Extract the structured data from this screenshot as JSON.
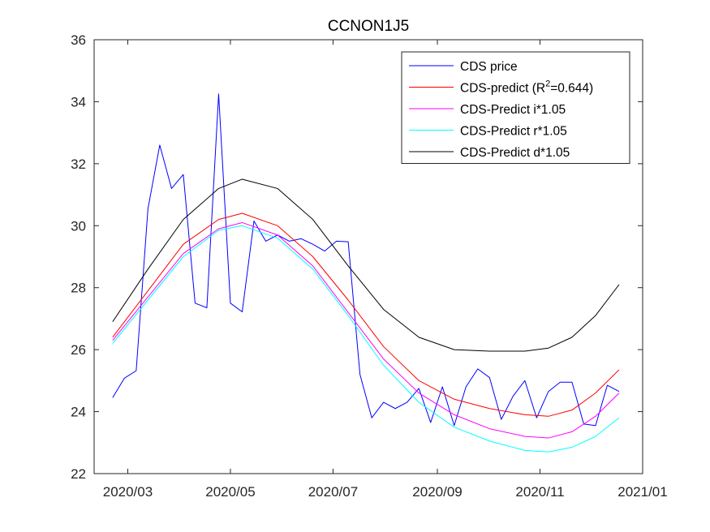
{
  "chart_data": {
    "type": "line",
    "title": "CCNON1J5",
    "xlabel": "",
    "ylabel": "",
    "xlim": [
      "2020-02-10",
      "2021-01-01"
    ],
    "ylim": [
      22,
      36
    ],
    "x_ticks": [
      "2020-03-01",
      "2020-05-01",
      "2020-07-01",
      "2020-09-01",
      "2020-11-01",
      "2021-01-01"
    ],
    "x_tick_labels": [
      "2020/03",
      "2020/05",
      "2020/07",
      "2020/09",
      "2020/11",
      "2021/01"
    ],
    "y_ticks": [
      22,
      24,
      26,
      28,
      30,
      32,
      34,
      36
    ],
    "y_tick_labels": [
      "22",
      "24",
      "26",
      "28",
      "30",
      "32",
      "34",
      "36"
    ],
    "grid": false,
    "legend_position": "top-right",
    "legend": [
      {
        "key": "cds",
        "label": "CDS price",
        "color": "#0000ff"
      },
      {
        "key": "pred",
        "label_pre": "CDS-predict (R",
        "label_sup": "2",
        "label_post": "=0.644)",
        "color": "#ff0000"
      },
      {
        "key": "i",
        "label": "CDS-Predict i*1.05",
        "color": "#ff00ff"
      },
      {
        "key": "r",
        "label": "CDS-Predict r*1.05",
        "color": "#00ffff"
      },
      {
        "key": "d",
        "label": "CDS-Predict d*1.05",
        "color": "#000000"
      }
    ],
    "series": [
      {
        "key": "cds",
        "name": "CDS price",
        "color": "#0000ff",
        "points": [
          [
            "2020-02-21",
            24.45
          ],
          [
            "2020-02-28",
            25.08
          ],
          [
            "2020-03-06",
            25.32
          ],
          [
            "2020-03-13",
            30.55
          ],
          [
            "2020-03-20",
            32.6
          ],
          [
            "2020-03-27",
            31.2
          ],
          [
            "2020-04-03",
            31.65
          ],
          [
            "2020-04-10",
            27.5
          ],
          [
            "2020-04-17",
            27.35
          ],
          [
            "2020-04-24",
            34.25
          ],
          [
            "2020-05-01",
            27.5
          ],
          [
            "2020-05-08",
            27.22
          ],
          [
            "2020-05-15",
            30.15
          ],
          [
            "2020-05-22",
            29.5
          ],
          [
            "2020-05-29",
            29.7
          ],
          [
            "2020-06-05",
            29.5
          ],
          [
            "2020-06-12",
            29.58
          ],
          [
            "2020-06-19",
            29.4
          ],
          [
            "2020-06-26",
            29.18
          ],
          [
            "2020-07-03",
            29.5
          ],
          [
            "2020-07-10",
            29.48
          ],
          [
            "2020-07-17",
            25.2
          ],
          [
            "2020-07-24",
            23.8
          ],
          [
            "2020-07-31",
            24.3
          ],
          [
            "2020-08-07",
            24.1
          ],
          [
            "2020-08-14",
            24.3
          ],
          [
            "2020-08-21",
            24.75
          ],
          [
            "2020-08-28",
            23.65
          ],
          [
            "2020-09-04",
            24.8
          ],
          [
            "2020-09-11",
            23.55
          ],
          [
            "2020-09-18",
            24.8
          ],
          [
            "2020-09-25",
            25.38
          ],
          [
            "2020-10-02",
            25.1
          ],
          [
            "2020-10-09",
            23.75
          ],
          [
            "2020-10-16",
            24.5
          ],
          [
            "2020-10-23",
            25.0
          ],
          [
            "2020-10-30",
            23.8
          ],
          [
            "2020-11-06",
            24.65
          ],
          [
            "2020-11-13",
            24.95
          ],
          [
            "2020-11-20",
            24.95
          ],
          [
            "2020-11-27",
            23.6
          ],
          [
            "2020-12-04",
            23.55
          ],
          [
            "2020-12-11",
            24.85
          ],
          [
            "2020-12-18",
            24.65
          ]
        ]
      },
      {
        "key": "pred",
        "name": "CDS-predict (R2=0.644)",
        "color": "#ff0000",
        "points": [
          [
            "2020-02-21",
            26.4
          ],
          [
            "2020-03-13",
            27.9
          ],
          [
            "2020-04-03",
            29.4
          ],
          [
            "2020-04-24",
            30.2
          ],
          [
            "2020-05-08",
            30.4
          ],
          [
            "2020-05-29",
            30.0
          ],
          [
            "2020-06-19",
            29.0
          ],
          [
            "2020-07-10",
            27.6
          ],
          [
            "2020-07-31",
            26.1
          ],
          [
            "2020-08-21",
            25.0
          ],
          [
            "2020-09-11",
            24.4
          ],
          [
            "2020-10-02",
            24.1
          ],
          [
            "2020-10-23",
            23.9
          ],
          [
            "2020-11-06",
            23.85
          ],
          [
            "2020-11-20",
            24.05
          ],
          [
            "2020-12-04",
            24.6
          ],
          [
            "2020-12-18",
            25.35
          ]
        ]
      },
      {
        "key": "i",
        "name": "CDS-Predict i*1.05",
        "color": "#ff00ff",
        "points": [
          [
            "2020-02-21",
            26.3
          ],
          [
            "2020-03-13",
            27.7
          ],
          [
            "2020-04-03",
            29.1
          ],
          [
            "2020-04-24",
            29.9
          ],
          [
            "2020-05-08",
            30.1
          ],
          [
            "2020-05-29",
            29.7
          ],
          [
            "2020-06-19",
            28.7
          ],
          [
            "2020-07-10",
            27.2
          ],
          [
            "2020-07-31",
            25.7
          ],
          [
            "2020-08-21",
            24.6
          ],
          [
            "2020-09-11",
            23.9
          ],
          [
            "2020-10-02",
            23.45
          ],
          [
            "2020-10-23",
            23.2
          ],
          [
            "2020-11-06",
            23.15
          ],
          [
            "2020-11-20",
            23.35
          ],
          [
            "2020-12-04",
            23.85
          ],
          [
            "2020-12-18",
            24.6
          ]
        ]
      },
      {
        "key": "r",
        "name": "CDS-Predict r*1.05",
        "color": "#00ffff",
        "points": [
          [
            "2020-02-21",
            26.2
          ],
          [
            "2020-03-13",
            27.6
          ],
          [
            "2020-04-03",
            29.0
          ],
          [
            "2020-04-24",
            29.85
          ],
          [
            "2020-05-08",
            30.0
          ],
          [
            "2020-05-29",
            29.6
          ],
          [
            "2020-06-19",
            28.6
          ],
          [
            "2020-07-10",
            27.1
          ],
          [
            "2020-07-31",
            25.5
          ],
          [
            "2020-08-21",
            24.3
          ],
          [
            "2020-09-11",
            23.5
          ],
          [
            "2020-10-02",
            23.05
          ],
          [
            "2020-10-23",
            22.75
          ],
          [
            "2020-11-06",
            22.7
          ],
          [
            "2020-11-20",
            22.85
          ],
          [
            "2020-12-04",
            23.2
          ],
          [
            "2020-12-18",
            23.8
          ]
        ]
      },
      {
        "key": "d",
        "name": "CDS-Predict d*1.05",
        "color": "#000000",
        "points": [
          [
            "2020-02-21",
            26.9
          ],
          [
            "2020-03-13",
            28.6
          ],
          [
            "2020-04-03",
            30.2
          ],
          [
            "2020-04-24",
            31.2
          ],
          [
            "2020-05-08",
            31.5
          ],
          [
            "2020-05-29",
            31.2
          ],
          [
            "2020-06-19",
            30.2
          ],
          [
            "2020-07-10",
            28.7
          ],
          [
            "2020-07-31",
            27.3
          ],
          [
            "2020-08-21",
            26.4
          ],
          [
            "2020-09-11",
            26.0
          ],
          [
            "2020-10-02",
            25.95
          ],
          [
            "2020-10-23",
            25.95
          ],
          [
            "2020-11-06",
            26.05
          ],
          [
            "2020-11-20",
            26.4
          ],
          [
            "2020-12-04",
            27.1
          ],
          [
            "2020-12-18",
            28.1
          ]
        ]
      }
    ]
  }
}
